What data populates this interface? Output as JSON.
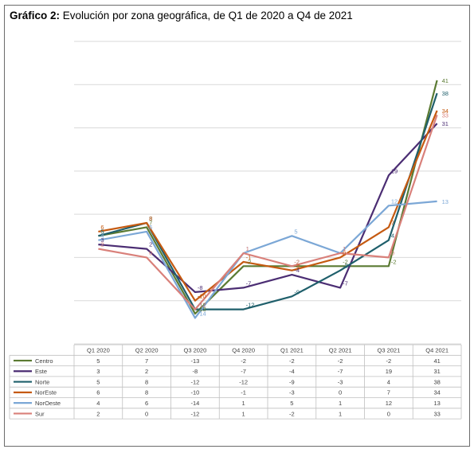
{
  "title": {
    "bold": "Gráfico 2:",
    "rest": " Evolución por zona geográfica, de Q1 de 2020 a Q4 de 2021"
  },
  "chart_data": {
    "type": "line",
    "categories": [
      "Q1 2020",
      "Q2 2020",
      "Q3 2020",
      "Q4 2020",
      "Q1 2021",
      "Q2 2021",
      "Q3 2021",
      "Q4 2021"
    ],
    "ylim": [
      -20,
      50
    ],
    "grid": true,
    "legend": "data-table",
    "series": [
      {
        "name": "Centro",
        "color": "#5a7a32",
        "values": [
          5,
          7,
          -13,
          -2,
          -2,
          -2,
          -2,
          41
        ]
      },
      {
        "name": "Este",
        "color": "#4b2d73",
        "values": [
          3,
          2,
          -8,
          -7,
          -4,
          -7,
          19,
          31
        ]
      },
      {
        "name": "Norte",
        "color": "#1f5f6b",
        "values": [
          5,
          8,
          -12,
          -12,
          -9,
          -3,
          4,
          38
        ]
      },
      {
        "name": "NorEste",
        "color": "#c55a11",
        "values": [
          6,
          8,
          -10,
          -1,
          -3,
          0,
          7,
          34
        ]
      },
      {
        "name": "NorOeste",
        "color": "#7ba7d6",
        "values": [
          4,
          6,
          -14,
          1,
          5,
          1,
          12,
          13
        ]
      },
      {
        "name": "Sur",
        "color": "#d9807a",
        "values": [
          2,
          0,
          -12,
          1,
          -2,
          1,
          0,
          33
        ]
      }
    ]
  }
}
